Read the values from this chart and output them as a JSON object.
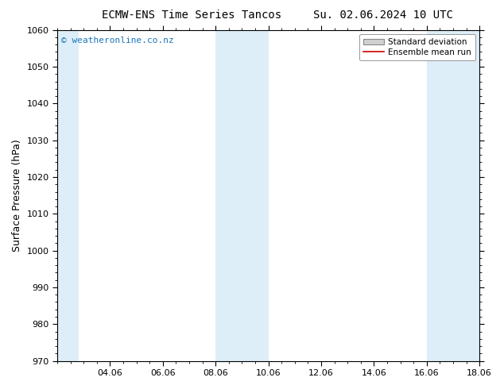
{
  "title_left": "ECMW-ENS Time Series Tancos",
  "title_right": "Su. 02.06.2024 10 UTC",
  "ylabel": "Surface Pressure (hPa)",
  "ylim": [
    970,
    1060
  ],
  "yticks": [
    970,
    980,
    990,
    1000,
    1010,
    1020,
    1030,
    1040,
    1050,
    1060
  ],
  "xlim": [
    0,
    16
  ],
  "xtick_labels": [
    "04.06",
    "06.06",
    "08.06",
    "10.06",
    "12.06",
    "14.06",
    "16.06",
    "18.06"
  ],
  "xtick_positions": [
    2,
    4,
    6,
    8,
    10,
    12,
    14,
    16
  ],
  "shaded_bands": [
    {
      "x_start": 0.0,
      "x_end": 0.8,
      "color": "#ddeef8"
    },
    {
      "x_start": 6.0,
      "x_end": 8.0,
      "color": "#ddeef8"
    },
    {
      "x_start": 14.0,
      "x_end": 16.0,
      "color": "#ddeef8"
    }
  ],
  "watermark": "© weatheronline.co.nz",
  "watermark_color": "#1a75bb",
  "legend_std_label": "Standard deviation",
  "legend_mean_label": "Ensemble mean run",
  "legend_std_facecolor": "#d0d0d0",
  "legend_std_edgecolor": "#888888",
  "legend_mean_color": "#cc0000",
  "background_color": "#ffffff",
  "plot_bg_color": "#ffffff",
  "title_fontsize": 10,
  "tick_fontsize": 8,
  "ylabel_fontsize": 9,
  "watermark_fontsize": 8,
  "legend_fontsize": 7.5,
  "spine_color": "#000000"
}
